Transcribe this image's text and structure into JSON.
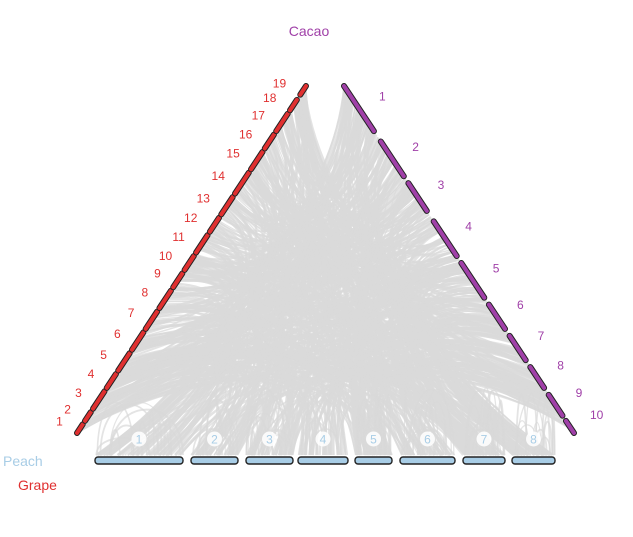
{
  "title": {
    "text": "Cacao"
  },
  "legend": {
    "items": [
      {
        "label": "Peach"
      },
      {
        "label": "Grape"
      }
    ]
  },
  "colors": {
    "grape": "#e03030",
    "cacao": "#a040a8",
    "peach": "#a8cde6",
    "link": "#d9d9d9",
    "outline": "#222222"
  },
  "genomes": {
    "grape": {
      "name": "Grape",
      "chromosomes": [
        "1",
        "2",
        "3",
        "4",
        "5",
        "6",
        "7",
        "8",
        "9",
        "10",
        "11",
        "12",
        "13",
        "14",
        "15",
        "16",
        "17",
        "18",
        "19"
      ]
    },
    "cacao": {
      "name": "Cacao",
      "chromosomes": [
        "1",
        "2",
        "3",
        "4",
        "5",
        "6",
        "7",
        "8",
        "9",
        "10"
      ]
    },
    "peach": {
      "name": "Peach",
      "chromosomes": [
        "1",
        "2",
        "3",
        "4",
        "5",
        "6",
        "7",
        "8"
      ]
    }
  }
}
